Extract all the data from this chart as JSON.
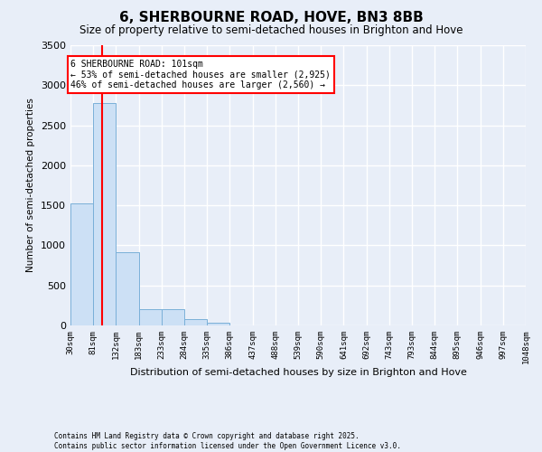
{
  "title": "6, SHERBOURNE ROAD, HOVE, BN3 8BB",
  "subtitle": "Size of property relative to semi-detached houses in Brighton and Hove",
  "xlabel": "Distribution of semi-detached houses by size in Brighton and Hove",
  "ylabel": "Number of semi-detached properties",
  "bar_color": "#cce0f5",
  "bar_edge_color": "#7ab0d8",
  "bg_color": "#e8eef8",
  "grid_color": "#ffffff",
  "property_line_x": 101,
  "property_line_color": "red",
  "annotation_text": "6 SHERBOURNE ROAD: 101sqm\n← 53% of semi-detached houses are smaller (2,925)\n46% of semi-detached houses are larger (2,560) →",
  "annotation_box_color": "white",
  "annotation_box_edge": "red",
  "bins": [
    30,
    81,
    132,
    183,
    233,
    284,
    335,
    386,
    437,
    488,
    539,
    590,
    641,
    692,
    743,
    793,
    844,
    895,
    946,
    997,
    1048
  ],
  "bin_values": [
    1520,
    2780,
    910,
    200,
    200,
    80,
    30,
    0,
    0,
    0,
    0,
    0,
    0,
    0,
    0,
    0,
    0,
    0,
    0,
    0
  ],
  "ylim": [
    0,
    3500
  ],
  "yticks": [
    0,
    500,
    1000,
    1500,
    2000,
    2500,
    3000,
    3500
  ],
  "footnote1": "Contains HM Land Registry data © Crown copyright and database right 2025.",
  "footnote2": "Contains public sector information licensed under the Open Government Licence v3.0."
}
